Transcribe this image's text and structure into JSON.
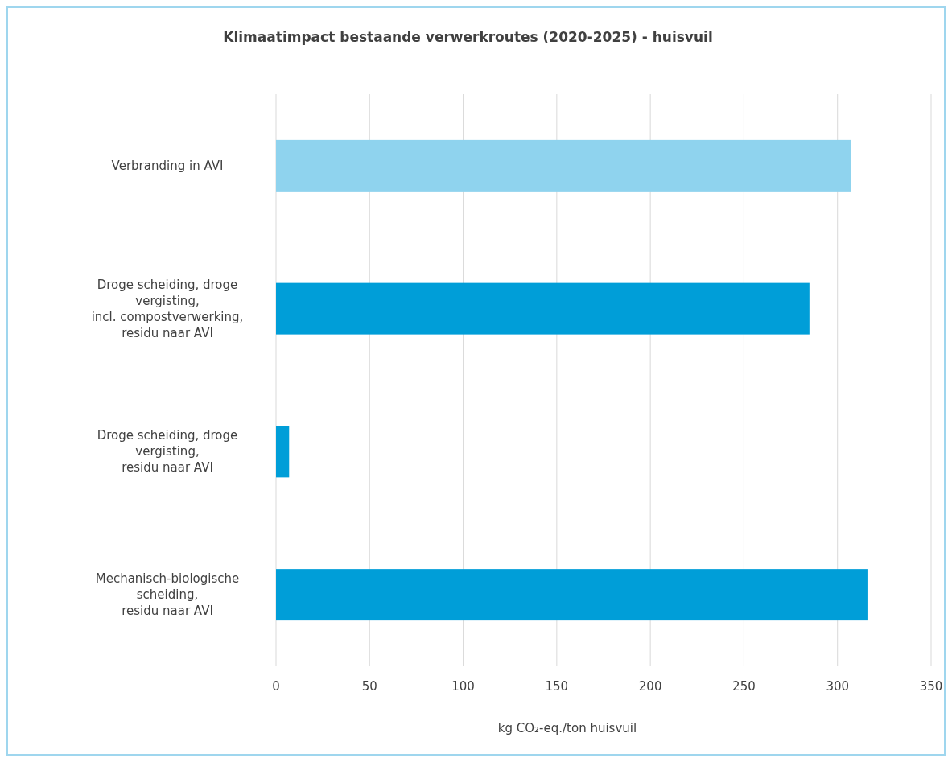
{
  "chart_data": {
    "type": "bar",
    "orientation": "horizontal",
    "title": "Klimaatimpact bestaande verwerkroutes  (2020-2025) - huisvuil",
    "xlabel": "kg CO₂-eq./ton huisvuil",
    "categories": [
      "Verbranding in AVI",
      "Droge scheiding, droge\nvergisting,\nincl. compostverwerking,\nresidu naar AVI",
      "Droge scheiding, droge\nvergisting,\nresidu naar AVI",
      "Mechanisch-biologische\nscheiding,\nresidu naar AVI"
    ],
    "values": [
      307,
      285,
      7,
      316
    ],
    "colors": [
      "#8fd3ee",
      "#009ed8",
      "#009ed8",
      "#009ed8"
    ],
    "xlim": [
      0,
      350
    ],
    "xticks": [
      0,
      50,
      100,
      150,
      200,
      250,
      300,
      350
    ],
    "grid": "x"
  }
}
